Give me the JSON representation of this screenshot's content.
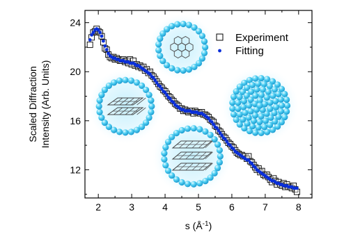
{
  "chart_data": {
    "type": "scatter",
    "xlabel": "s (Å",
    "xlabel_sup": "-1",
    "xlabel_close": ")",
    "ylabel_line1": "Scaled Diffraction",
    "ylabel_line2": "Intensity (Arb. Units)",
    "xlim": [
      1.6,
      8.4
    ],
    "ylim": [
      9.7,
      25.0
    ],
    "xticks": [
      "2",
      "3",
      "4",
      "5",
      "6",
      "7",
      "8"
    ],
    "yticks": [
      "12",
      "16",
      "20",
      "24"
    ],
    "legend_position": "top-right",
    "colors": {
      "experiment": "#000000",
      "fitting": "#0a2fd9",
      "cluster": "#33c6ee"
    },
    "series": [
      {
        "name": "Experiment",
        "marker": "open-square",
        "x": [
          1.75,
          1.8,
          1.85,
          1.9,
          1.95,
          2.0,
          2.05,
          2.1,
          2.15,
          2.2,
          2.25,
          2.3,
          2.35,
          2.4,
          2.45,
          2.5,
          2.55,
          2.6,
          2.65,
          2.7,
          2.75,
          2.8,
          2.85,
          2.9,
          2.95,
          3.0,
          3.05,
          3.1,
          3.15,
          3.2,
          3.25,
          3.3,
          3.35,
          3.4,
          3.45,
          3.5,
          3.55,
          3.6,
          3.65,
          3.7,
          3.75,
          3.8,
          3.85,
          3.9,
          3.95,
          4.0,
          4.05,
          4.1,
          4.15,
          4.2,
          4.25,
          4.3,
          4.35,
          4.4,
          4.45,
          4.5,
          4.55,
          4.6,
          4.65,
          4.7,
          4.75,
          4.8,
          4.85,
          4.9,
          4.95,
          5.0,
          5.05,
          5.1,
          5.15,
          5.2,
          5.25,
          5.3,
          5.35,
          5.4,
          5.45,
          5.5,
          5.55,
          5.6,
          5.65,
          5.7,
          5.75,
          5.8,
          5.85,
          5.9,
          5.95,
          6.0,
          6.05,
          6.1,
          6.15,
          6.2,
          6.25,
          6.3,
          6.35,
          6.4,
          6.45,
          6.5,
          6.55,
          6.6,
          6.65,
          6.7,
          6.75,
          6.8,
          6.85,
          6.9,
          6.95,
          7.0,
          7.05,
          7.1,
          7.15,
          7.2,
          7.25,
          7.3,
          7.35,
          7.4,
          7.45,
          7.5,
          7.55,
          7.6,
          7.65,
          7.7,
          7.75,
          7.8,
          7.85,
          7.9,
          7.95
        ],
        "y": [
          22.2,
          22.8,
          23.2,
          23.3,
          23.5,
          23.3,
          23.2,
          22.9,
          22.4,
          21.9,
          21.8,
          21.4,
          21.2,
          21.1,
          21.2,
          21.0,
          21.1,
          21.0,
          20.9,
          20.9,
          21.0,
          20.8,
          20.9,
          20.7,
          21.0,
          20.6,
          20.9,
          20.5,
          20.6,
          20.4,
          20.5,
          20.3,
          20.4,
          20.1,
          20.2,
          19.9,
          20.0,
          19.7,
          19.6,
          19.4,
          19.2,
          19.0,
          18.8,
          18.7,
          18.5,
          18.4,
          18.2,
          18.0,
          17.9,
          17.7,
          17.6,
          17.4,
          17.3,
          17.2,
          17.0,
          17.0,
          16.8,
          16.9,
          16.8,
          16.7,
          16.8,
          16.8,
          16.6,
          16.8,
          16.7,
          16.7,
          16.6,
          16.7,
          16.5,
          16.5,
          16.4,
          16.3,
          16.1,
          16.0,
          15.9,
          15.6,
          15.5,
          15.2,
          15.1,
          14.9,
          14.7,
          14.6,
          14.4,
          14.2,
          14.1,
          13.9,
          13.8,
          13.6,
          13.4,
          13.3,
          13.2,
          13.2,
          13.1,
          13.1,
          12.9,
          13.1,
          12.7,
          12.6,
          12.4,
          12.2,
          12.0,
          12.1,
          11.8,
          11.9,
          11.6,
          11.5,
          11.6,
          11.4,
          11.2,
          11.0,
          11.3,
          11.1,
          10.8,
          11.0,
          10.8,
          10.7,
          10.9,
          10.6,
          10.8,
          10.6,
          10.6,
          10.5,
          10.7,
          10.4,
          10.2
        ]
      },
      {
        "name": "Fitting",
        "marker": "dot",
        "x": [
          1.75,
          1.8,
          1.85,
          1.9,
          1.95,
          2.0,
          2.05,
          2.1,
          2.15,
          2.2,
          2.25,
          2.3,
          2.35,
          2.4,
          2.45,
          2.5,
          2.55,
          2.6,
          2.65,
          2.7,
          2.75,
          2.8,
          2.85,
          2.9,
          2.95,
          3.0,
          3.05,
          3.1,
          3.15,
          3.2,
          3.25,
          3.3,
          3.35,
          3.4,
          3.45,
          3.5,
          3.55,
          3.6,
          3.65,
          3.7,
          3.75,
          3.8,
          3.85,
          3.9,
          3.95,
          4.0,
          4.05,
          4.1,
          4.15,
          4.2,
          4.25,
          4.3,
          4.35,
          4.4,
          4.45,
          4.5,
          4.55,
          4.6,
          4.65,
          4.7,
          4.75,
          4.8,
          4.85,
          4.9,
          4.95,
          5.0,
          5.05,
          5.1,
          5.15,
          5.2,
          5.25,
          5.3,
          5.35,
          5.4,
          5.45,
          5.5,
          5.55,
          5.6,
          5.65,
          5.7,
          5.75,
          5.8,
          5.85,
          5.9,
          5.95,
          6.0,
          6.05,
          6.1,
          6.15,
          6.2,
          6.25,
          6.3,
          6.35,
          6.4,
          6.45,
          6.5,
          6.55,
          6.6,
          6.65,
          6.7,
          6.75,
          6.8,
          6.85,
          6.9,
          6.95,
          7.0,
          7.05,
          7.1,
          7.15,
          7.2,
          7.25,
          7.3,
          7.35,
          7.4,
          7.45,
          7.5,
          7.55,
          7.6,
          7.65,
          7.7,
          7.75,
          7.8,
          7.85,
          7.9,
          7.95
        ],
        "y": [
          22.6,
          23.0,
          23.2,
          23.4,
          23.5,
          23.4,
          23.2,
          22.9,
          22.5,
          22.1,
          21.8,
          21.5,
          21.3,
          21.2,
          21.1,
          21.1,
          21.0,
          21.0,
          20.9,
          20.9,
          20.9,
          20.8,
          20.8,
          20.8,
          20.7,
          20.7,
          20.7,
          20.6,
          20.5,
          20.5,
          20.4,
          20.3,
          20.2,
          20.1,
          20.0,
          19.9,
          19.8,
          19.6,
          19.5,
          19.3,
          19.1,
          18.9,
          18.8,
          18.6,
          18.4,
          18.3,
          18.1,
          17.9,
          17.8,
          17.6,
          17.5,
          17.3,
          17.2,
          17.1,
          17.0,
          16.9,
          16.9,
          16.8,
          16.8,
          16.8,
          16.8,
          16.7,
          16.7,
          16.7,
          16.7,
          16.6,
          16.6,
          16.6,
          16.5,
          16.4,
          16.3,
          16.2,
          16.0,
          15.9,
          15.7,
          15.5,
          15.4,
          15.2,
          15.0,
          14.8,
          14.6,
          14.5,
          14.3,
          14.1,
          14.0,
          13.8,
          13.7,
          13.5,
          13.4,
          13.3,
          13.2,
          13.1,
          13.0,
          12.9,
          12.8,
          12.8,
          12.6,
          12.5,
          12.3,
          12.2,
          12.0,
          11.9,
          11.8,
          11.7,
          11.6,
          11.5,
          11.4,
          11.3,
          11.2,
          11.1,
          11.1,
          11.0,
          10.9,
          10.9,
          10.8,
          10.8,
          10.7,
          10.7,
          10.7,
          10.6,
          10.6,
          10.6,
          10.5,
          10.5,
          10.5
        ]
      }
    ],
    "insets": [
      "cluster-with-molecule-face-on",
      "cluster-with-molecule-edge-on",
      "cluster-with-molecule-stack",
      "bare-cluster"
    ]
  }
}
